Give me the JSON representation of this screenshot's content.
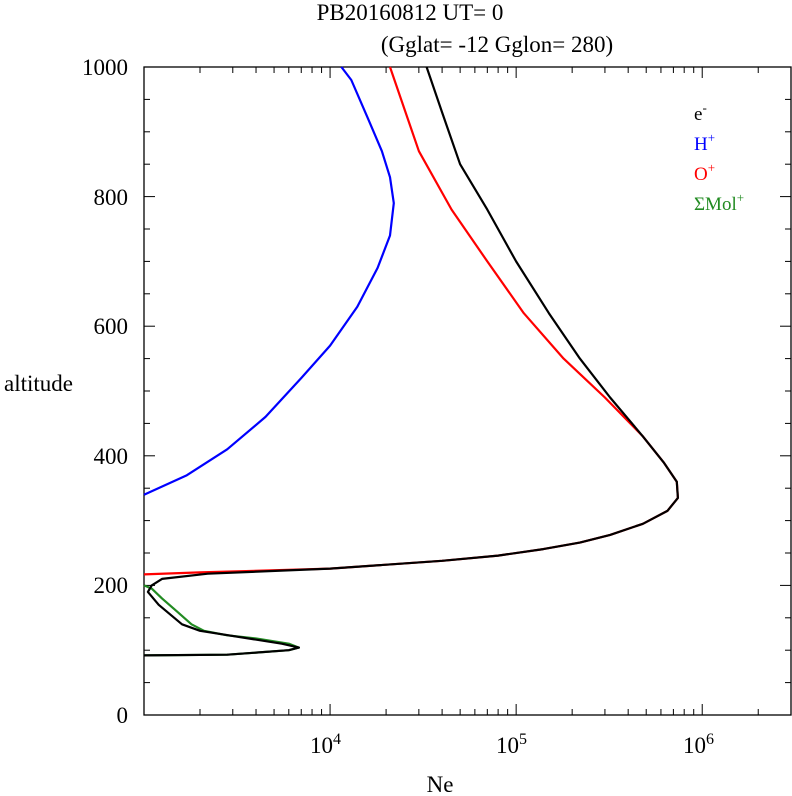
{
  "header": {
    "line1": "PB20160812   UT=  0",
    "line2": "(Gglat= -12   Gglon=  280)"
  },
  "axes": {
    "ylabel": "altitude",
    "xlabel": "Ne",
    "y_ticks": [
      "0",
      "200",
      "400",
      "600",
      "800",
      "1000"
    ],
    "x_ticks": [
      {
        "base": "10",
        "exp": "4"
      },
      {
        "base": "10",
        "exp": "5"
      },
      {
        "base": "10",
        "exp": "6"
      }
    ]
  },
  "legend": [
    {
      "base": "e",
      "sup": "-",
      "color": "#000000"
    },
    {
      "base": "H",
      "sup": "+",
      "color": "#0000ff"
    },
    {
      "base": "O",
      "sup": "+",
      "color": "#ff0000"
    },
    {
      "base": "ΣMol",
      "sup": "+",
      "color": "#228b22"
    }
  ],
  "chart_data": {
    "type": "line",
    "x_scale": "log",
    "xlim": [
      1000,
      3000000
    ],
    "ylim": [
      0,
      1000
    ],
    "xlabel": "Ne",
    "ylabel": "altitude",
    "legend_position": "top-right",
    "grid": false,
    "series": [
      {
        "name": "e-",
        "color": "#000000",
        "points": [
          [
            1000,
            92
          ],
          [
            2800,
            93
          ],
          [
            6000,
            100
          ],
          [
            6800,
            104
          ],
          [
            5500,
            110
          ],
          [
            2000,
            130
          ],
          [
            1600,
            140
          ],
          [
            1200,
            170
          ],
          [
            1050,
            190
          ],
          [
            1100,
            200
          ],
          [
            1250,
            210
          ],
          [
            2200,
            218
          ],
          [
            10000,
            226
          ],
          [
            40000,
            238
          ],
          [
            80000,
            246
          ],
          [
            140000,
            256
          ],
          [
            220000,
            266
          ],
          [
            320000,
            278
          ],
          [
            480000,
            295
          ],
          [
            650000,
            315
          ],
          [
            740000,
            335
          ],
          [
            730000,
            360
          ],
          [
            620000,
            390
          ],
          [
            480000,
            430
          ],
          [
            320000,
            490
          ],
          [
            220000,
            550
          ],
          [
            150000,
            620
          ],
          [
            100000,
            700
          ],
          [
            70000,
            780
          ],
          [
            50000,
            850
          ],
          [
            40000,
            930
          ],
          [
            33000,
            1000
          ]
        ]
      },
      {
        "name": "H+",
        "color": "#0000ff",
        "points": [
          [
            1000,
            340
          ],
          [
            1700,
            370
          ],
          [
            2800,
            410
          ],
          [
            4500,
            460
          ],
          [
            7000,
            520
          ],
          [
            10000,
            570
          ],
          [
            14000,
            630
          ],
          [
            18000,
            690
          ],
          [
            21000,
            740
          ],
          [
            22000,
            790
          ],
          [
            21000,
            830
          ],
          [
            19000,
            870
          ],
          [
            16000,
            920
          ],
          [
            13000,
            980
          ],
          [
            11500,
            1000
          ]
        ]
      },
      {
        "name": "O+",
        "color": "#ff0000",
        "points": [
          [
            1000,
            217
          ],
          [
            2000,
            220
          ],
          [
            10000,
            226
          ],
          [
            40000,
            238
          ],
          [
            80000,
            246
          ],
          [
            140000,
            256
          ],
          [
            220000,
            266
          ],
          [
            320000,
            278
          ],
          [
            480000,
            295
          ],
          [
            650000,
            315
          ],
          [
            740000,
            335
          ],
          [
            730000,
            360
          ],
          [
            620000,
            390
          ],
          [
            480000,
            430
          ],
          [
            300000,
            490
          ],
          [
            180000,
            550
          ],
          [
            110000,
            620
          ],
          [
            70000,
            700
          ],
          [
            45000,
            780
          ],
          [
            30000,
            870
          ],
          [
            21000,
            1000
          ]
        ]
      },
      {
        "name": "ΣMol+",
        "color": "#228b22",
        "points": [
          [
            1000,
            200
          ],
          [
            1100,
            195
          ],
          [
            1250,
            180
          ],
          [
            1500,
            160
          ],
          [
            1800,
            140
          ],
          [
            2100,
            130
          ],
          [
            2800,
            123
          ],
          [
            4000,
            118
          ],
          [
            6000,
            110
          ],
          [
            6800,
            104
          ],
          [
            6000,
            100
          ],
          [
            2800,
            93
          ],
          [
            1000,
            92
          ]
        ]
      }
    ]
  }
}
